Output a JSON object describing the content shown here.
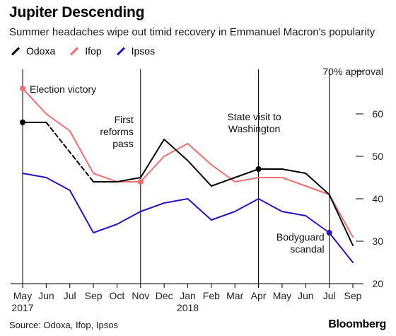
{
  "title": "Jupiter Descending",
  "subtitle": "Summer headaches wipe out timid recovery in Emmanuel Macron's popularity",
  "source": "Source: Odoxa, Ifop, Ipsos",
  "brand": "Bloomberg",
  "colors": {
    "Odoxa": "#000000",
    "Ifop": "#f26d6d",
    "Ipsos": "#2b12c4"
  },
  "chart_data": {
    "type": "line",
    "x": [
      "May",
      "Jun",
      "Jul",
      "Sep",
      "Oct",
      "Nov",
      "Dec",
      "Jan",
      "Feb",
      "Mar",
      "Apr",
      "May",
      "Jun",
      "Jul",
      "Sep"
    ],
    "x_sublabels": {
      "0": "2017",
      "7": "2018"
    },
    "yticks": [
      20,
      30,
      40,
      50,
      60,
      70
    ],
    "ytick_labels": [
      "20",
      "30",
      "40",
      "50",
      "60",
      "70% approval"
    ],
    "ylim": [
      20,
      70
    ],
    "grid": false,
    "legend_position": "top-left",
    "series": [
      {
        "name": "Odoxa",
        "values": [
          58,
          58,
          51,
          44,
          44,
          45,
          54,
          49,
          43,
          45,
          47,
          47,
          46,
          41,
          29
        ],
        "dashed_segments": [
          [
            1,
            3
          ]
        ],
        "marked_points": [
          0,
          10
        ]
      },
      {
        "name": "Ifop",
        "values": [
          66,
          60,
          56,
          46,
          44,
          44,
          50,
          53,
          48,
          44,
          45,
          45,
          43,
          41,
          31
        ],
        "marked_points": [
          0,
          5
        ]
      },
      {
        "name": "Ipsos",
        "values": [
          46,
          45,
          42,
          32,
          34,
          37,
          39,
          40,
          35,
          37,
          40,
          37,
          36,
          32,
          25
        ],
        "marked_points": [
          13
        ]
      }
    ],
    "event_lines": [
      {
        "x_index": 0,
        "label_lines": [
          "Election victory"
        ],
        "anchor": "start"
      },
      {
        "x_index": 5,
        "label_lines": [
          "First",
          "reforms",
          "pass"
        ],
        "anchor": "end"
      },
      {
        "x_index": 10,
        "label_lines": [
          "State visit to",
          "Washington"
        ],
        "anchor": "middle"
      },
      {
        "x_index": 13,
        "label_lines": [
          "Bodyguard",
          "scandal"
        ],
        "anchor": "end"
      }
    ]
  }
}
